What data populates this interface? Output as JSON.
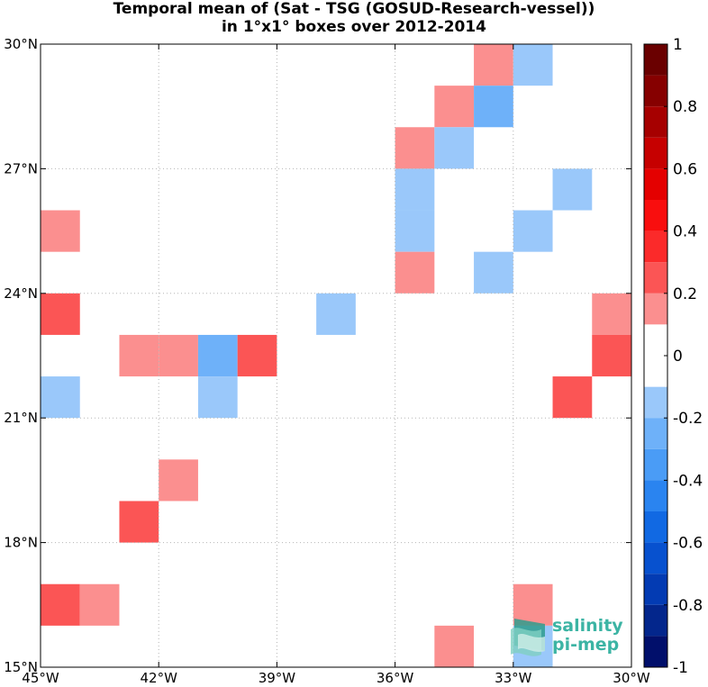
{
  "title_line1": "Temporal mean of (Sat - TSG (GOSUD-Research-vessel))",
  "title_line2": "in 1°x1° boxes over 2012-2014",
  "logo": {
    "line1": "salinity",
    "line2": "pi-mep",
    "icon": "wave-ribbon-icon"
  },
  "colors": {
    "neg": [
      "#cfe2fb",
      "#9ac8fa",
      "#6eb1f9",
      "#4a9cf6",
      "#2a84f0",
      "#1169e3",
      "#0751cf",
      "#033bb3",
      "#03268c",
      "#010f6b"
    ],
    "pos": [
      "#fbc8c8",
      "#fb8f8f",
      "#fb5555",
      "#fb2a2a",
      "#f90e0e",
      "#e40000",
      "#c60000",
      "#a60000",
      "#860000",
      "#6a0000"
    ]
  },
  "chart_data": {
    "type": "heatmap",
    "title": "Temporal mean of (Sat - TSG (GOSUD-Research-vessel)) in 1°x1° boxes over 2012-2014",
    "x_range": [
      -45,
      -30
    ],
    "y_range": [
      15,
      30
    ],
    "x_ticks": [
      {
        "value": -45,
        "label": "45°W"
      },
      {
        "value": -42,
        "label": "42°W"
      },
      {
        "value": -39,
        "label": "39°W"
      },
      {
        "value": -36,
        "label": "36°W"
      },
      {
        "value": -33,
        "label": "33°W"
      },
      {
        "value": -30,
        "label": "30°W"
      }
    ],
    "y_ticks": [
      {
        "value": 15,
        "label": "15°N"
      },
      {
        "value": 18,
        "label": "18°N"
      },
      {
        "value": 21,
        "label": "21°N"
      },
      {
        "value": 24,
        "label": "24°N"
      },
      {
        "value": 27,
        "label": "27°N"
      },
      {
        "value": 30,
        "label": "30°N"
      }
    ],
    "grid": true,
    "colorbar": {
      "range": [
        -1,
        1
      ],
      "step": 0.1,
      "tick_labels": [
        {
          "value": 1,
          "label": "1"
        },
        {
          "value": 0.8,
          "label": "0.8"
        },
        {
          "value": 0.6,
          "label": "0.6"
        },
        {
          "value": 0.4,
          "label": "0.4"
        },
        {
          "value": 0.2,
          "label": "0.2"
        },
        {
          "value": 0,
          "label": "0"
        },
        {
          "value": -0.2,
          "label": "-0.2"
        },
        {
          "value": -0.4,
          "label": "-0.4"
        },
        {
          "value": -0.6,
          "label": "-0.6"
        },
        {
          "value": -0.8,
          "label": "-0.8"
        },
        {
          "value": -1,
          "label": "-1"
        }
      ]
    },
    "cells": [
      {
        "lon": -34,
        "lat": 29,
        "value": 0.15
      },
      {
        "lon": -33,
        "lat": 29,
        "value": -0.15
      },
      {
        "lon": -35,
        "lat": 28,
        "value": 0.15
      },
      {
        "lon": -34,
        "lat": 28,
        "value": -0.25
      },
      {
        "lon": -36,
        "lat": 27,
        "value": 0.15
      },
      {
        "lon": -35,
        "lat": 27,
        "value": -0.15
      },
      {
        "lon": -36,
        "lat": 26,
        "value": -0.15
      },
      {
        "lon": -32,
        "lat": 26,
        "value": -0.15
      },
      {
        "lon": -45,
        "lat": 25,
        "value": 0.15
      },
      {
        "lon": -36,
        "lat": 25,
        "value": -0.15
      },
      {
        "lon": -33,
        "lat": 25,
        "value": -0.15
      },
      {
        "lon": -36,
        "lat": 24,
        "value": 0.15
      },
      {
        "lon": -34,
        "lat": 24,
        "value": -0.15
      },
      {
        "lon": -45,
        "lat": 23,
        "value": 0.25
      },
      {
        "lon": -38,
        "lat": 23,
        "value": -0.15
      },
      {
        "lon": -31,
        "lat": 23,
        "value": 0.15
      },
      {
        "lon": -43,
        "lat": 22,
        "value": 0.15
      },
      {
        "lon": -42,
        "lat": 22,
        "value": 0.15
      },
      {
        "lon": -41,
        "lat": 22,
        "value": -0.25
      },
      {
        "lon": -40,
        "lat": 22,
        "value": 0.25
      },
      {
        "lon": -31,
        "lat": 22,
        "value": 0.25
      },
      {
        "lon": -45,
        "lat": 21,
        "value": -0.15
      },
      {
        "lon": -41,
        "lat": 21,
        "value": -0.15
      },
      {
        "lon": -32,
        "lat": 21,
        "value": 0.25
      },
      {
        "lon": -42,
        "lat": 19,
        "value": 0.15
      },
      {
        "lon": -43,
        "lat": 18,
        "value": 0.25
      },
      {
        "lon": -45,
        "lat": 16,
        "value": 0.25
      },
      {
        "lon": -44,
        "lat": 16,
        "value": 0.15
      },
      {
        "lon": -33,
        "lat": 16,
        "value": 0.15
      },
      {
        "lon": -35,
        "lat": 15,
        "value": 0.15
      },
      {
        "lon": -33,
        "lat": 15,
        "value": -0.15
      }
    ]
  }
}
